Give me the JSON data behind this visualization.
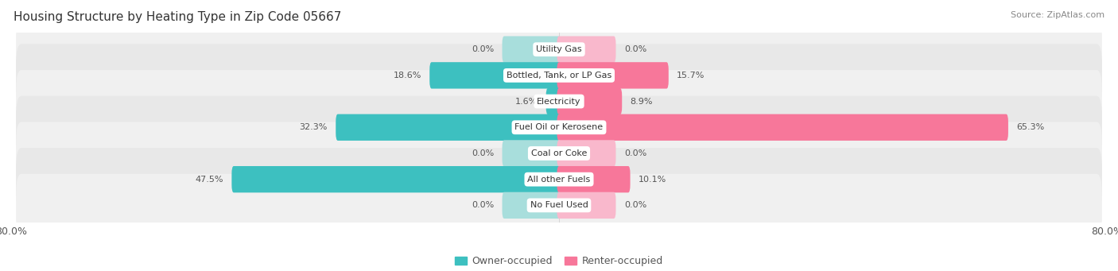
{
  "title": "Housing Structure by Heating Type in Zip Code 05667",
  "source": "Source: ZipAtlas.com",
  "categories": [
    "Utility Gas",
    "Bottled, Tank, or LP Gas",
    "Electricity",
    "Fuel Oil or Kerosene",
    "Coal or Coke",
    "All other Fuels",
    "No Fuel Used"
  ],
  "owner_values": [
    0.0,
    18.6,
    1.6,
    32.3,
    0.0,
    47.5,
    0.0
  ],
  "renter_values": [
    0.0,
    15.7,
    8.9,
    65.3,
    0.0,
    10.1,
    0.0
  ],
  "owner_color": "#3DC0C0",
  "renter_color": "#F7779A",
  "owner_color_zero": "#A8DEDC",
  "renter_color_zero": "#F9B8CC",
  "label_color": "#555555",
  "row_bg_even": "#F0F0F0",
  "row_bg_odd": "#E8E8E8",
  "xlim_left": -80.0,
  "xlim_right": 80.0,
  "zero_bar_size": 8.0,
  "title_fontsize": 11,
  "source_fontsize": 8,
  "tick_fontsize": 9,
  "bar_label_fontsize": 8,
  "category_fontsize": 8,
  "legend_fontsize": 9
}
